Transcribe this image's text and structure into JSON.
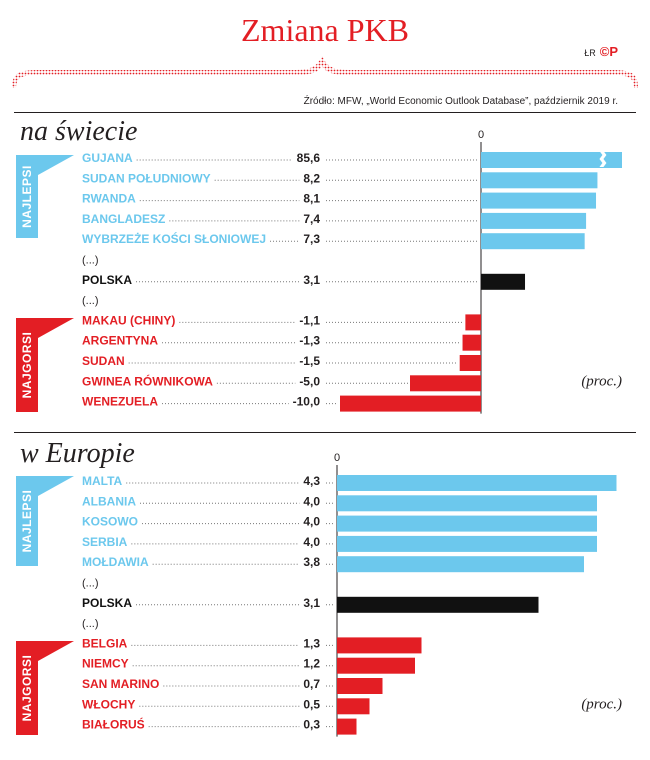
{
  "title": "Zmiana PKB",
  "brand": {
    "initials": "ŁR",
    "mark": "©P"
  },
  "source": "Źródło: MFW, „World Economic Outlook Database”, październik 2019 r.",
  "colors": {
    "best": "#6cc8ed",
    "poland": "#111111",
    "worst": "#e31e24",
    "accent": "#e31e24"
  },
  "chart_data": [
    {
      "type": "bar",
      "title": "na świecie",
      "unit_label": "(proc.)",
      "zero_label": "0",
      "best_label": "NAJLEPSI",
      "worst_label": "NAJGORSI",
      "ellipsis": "(...)",
      "axis_break_at": 9.5,
      "rows": [
        {
          "name": "GUJANA",
          "value_label": "85,6",
          "value": 85.6,
          "group": "best"
        },
        {
          "name": "SUDAN POŁUDNIOWY",
          "value_label": "8,2",
          "value": 8.2,
          "group": "best"
        },
        {
          "name": "RWANDA",
          "value_label": "8,1",
          "value": 8.1,
          "group": "best"
        },
        {
          "name": "BANGLADESZ",
          "value_label": "7,4",
          "value": 7.4,
          "group": "best"
        },
        {
          "name": "WYBRZEŻE KOŚCI SŁONIOWEJ",
          "value_label": "7,3",
          "value": 7.3,
          "group": "best"
        },
        {
          "ellipsis": true
        },
        {
          "name": "POLSKA",
          "value_label": "3,1",
          "value": 3.1,
          "group": "poland"
        },
        {
          "ellipsis": true
        },
        {
          "name": "MAKAU (CHINY)",
          "value_label": "-1,1",
          "value": -1.1,
          "group": "worst"
        },
        {
          "name": "ARGENTYNA",
          "value_label": "-1,3",
          "value": -1.3,
          "group": "worst"
        },
        {
          "name": "SUDAN",
          "value_label": "-1,5",
          "value": -1.5,
          "group": "worst"
        },
        {
          "name": "GWINEA RÓWNIKOWA",
          "value_label": "-5,0",
          "value": -5.0,
          "group": "worst"
        },
        {
          "name": "WENEZUELA",
          "value_label": "-10,0",
          "value": -10.0,
          "group": "worst"
        }
      ]
    },
    {
      "type": "bar",
      "title": "w Europie",
      "unit_label": "(proc.)",
      "zero_label": "0",
      "best_label": "NAJLEPSI",
      "worst_label": "NAJGORSI",
      "ellipsis": "(...)",
      "rows": [
        {
          "name": "MALTA",
          "value_label": "4,3",
          "value": 4.3,
          "group": "best"
        },
        {
          "name": "ALBANIA",
          "value_label": "4,0",
          "value": 4.0,
          "group": "best"
        },
        {
          "name": "KOSOWO",
          "value_label": "4,0",
          "value": 4.0,
          "group": "best"
        },
        {
          "name": "SERBIA",
          "value_label": "4,0",
          "value": 4.0,
          "group": "best"
        },
        {
          "name": "MOŁDAWIA",
          "value_label": "3,8",
          "value": 3.8,
          "group": "best"
        },
        {
          "ellipsis": true
        },
        {
          "name": "POLSKA",
          "value_label": "3,1",
          "value": 3.1,
          "group": "poland"
        },
        {
          "ellipsis": true
        },
        {
          "name": "BELGIA",
          "value_label": "1,3",
          "value": 1.3,
          "group": "worst"
        },
        {
          "name": "NIEMCY",
          "value_label": "1,2",
          "value": 1.2,
          "group": "worst"
        },
        {
          "name": "SAN MARINO",
          "value_label": "0,7",
          "value": 0.7,
          "group": "worst"
        },
        {
          "name": "WŁOCHY",
          "value_label": "0,5",
          "value": 0.5,
          "group": "worst"
        },
        {
          "name": "BIAŁORUŚ",
          "value_label": "0,3",
          "value": 0.3,
          "group": "worst"
        }
      ]
    }
  ]
}
